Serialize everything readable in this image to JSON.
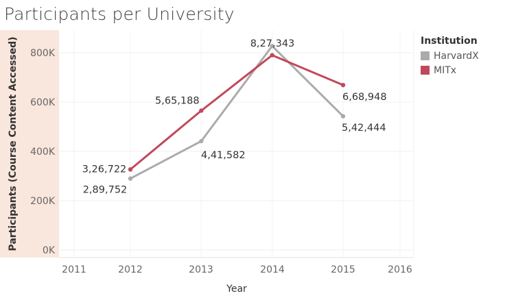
{
  "page": {
    "title": "Participants per University"
  },
  "legend": {
    "title": "Institution",
    "items": [
      {
        "label": "HarvardX",
        "color": "#ababab"
      },
      {
        "label": "MITx",
        "color": "#c1485b"
      }
    ]
  },
  "chart_data": {
    "type": "line",
    "title": "Participants per University",
    "xlabel": "Year",
    "ylabel": "Participants (Course Content Accessed)",
    "x_ticks": [
      "2011",
      "2012",
      "2013",
      "2014",
      "2015",
      "2016"
    ],
    "xlim": [
      2011,
      2016
    ],
    "y_ticks": [
      "0K",
      "200K",
      "400K",
      "600K",
      "800K"
    ],
    "y_tick_values": [
      0,
      200000,
      400000,
      600000,
      800000
    ],
    "ylim": [
      0,
      845000
    ],
    "grid": true,
    "legend_position": "right",
    "axis_band_color": "#f9e6dc",
    "series": [
      {
        "name": "HarvardX",
        "color": "#ababab",
        "x": [
          2012,
          2013,
          2014,
          2015
        ],
        "values": [
          289752,
          441582,
          827343,
          542444
        ],
        "labels": [
          "2,89,752",
          "4,41,582",
          "8,27,343",
          "5,42,444"
        ]
      },
      {
        "name": "MITx",
        "color": "#c1485b",
        "x": [
          2012,
          2013,
          2014,
          2015
        ],
        "values": [
          326722,
          565188,
          790000,
          668948
        ],
        "labels": [
          "3,26,722",
          "5,65,188",
          "",
          "6,68,948"
        ]
      }
    ]
  }
}
